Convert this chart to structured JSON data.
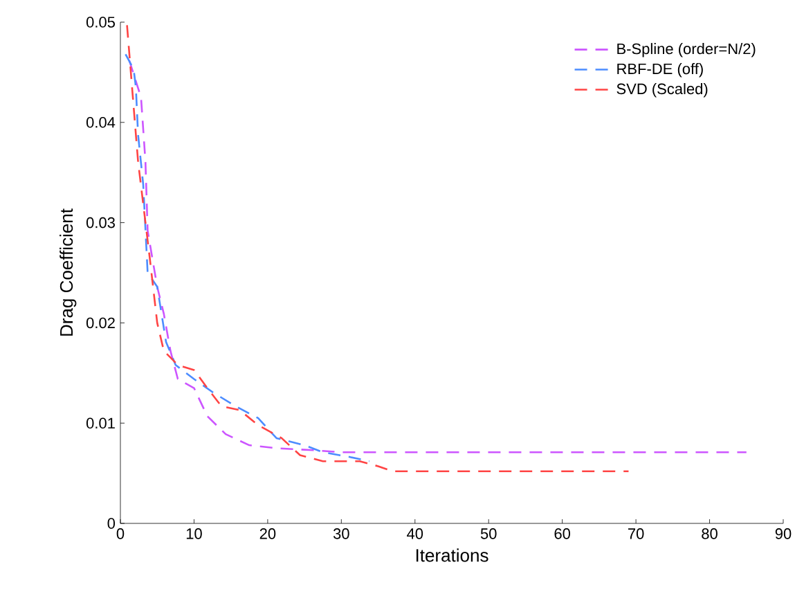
{
  "chart_data": {
    "type": "line",
    "xlabel": "Iterations",
    "ylabel": "Drag Coefficient",
    "xlim": [
      0,
      90
    ],
    "xticks": [
      0,
      10,
      20,
      30,
      40,
      50,
      60,
      70,
      80,
      90
    ],
    "ylim": [
      0,
      0.05
    ],
    "yticks": [
      0,
      0.01,
      0.02,
      0.03,
      0.04,
      0.05
    ],
    "legend": "top right",
    "grid": false,
    "marker": "none",
    "line_style": "dashed",
    "series": [
      {
        "name": "B-Spline (order=N/2)",
        "color": "#cc55ff",
        "x": [
          1.2,
          2.8,
          3.4,
          3.7,
          5,
          5.9,
          6.8,
          7.8,
          10,
          11.8,
          14.3,
          17.5,
          21.2,
          26.2,
          30,
          85
        ],
        "values": [
          0.0462,
          0.0425,
          0.0361,
          0.0292,
          0.0236,
          0.0209,
          0.0172,
          0.0144,
          0.0135,
          0.0107,
          0.0089,
          0.0078,
          0.0075,
          0.0073,
          0.0071,
          0.0071
        ]
      },
      {
        "name": "RBF-DE (off)",
        "color": "#4c8cff",
        "x": [
          0.7,
          1.8,
          2.1,
          2.4,
          3.1,
          3.7,
          5,
          6.2,
          7.5,
          10,
          12.5,
          15.6,
          18.7,
          21.2,
          25,
          27.5,
          31.3,
          33.8
        ],
        "values": [
          0.0468,
          0.0453,
          0.0435,
          0.0388,
          0.0338,
          0.025,
          0.0236,
          0.0181,
          0.0158,
          0.0144,
          0.0131,
          0.0117,
          0.0105,
          0.0085,
          0.0078,
          0.0071,
          0.0066,
          0.0062
        ]
      },
      {
        "name": "SVD (Scaled)",
        "color": "#ff4444",
        "x": [
          0.9,
          2.4,
          4,
          5,
          5.9,
          7.8,
          10,
          11.8,
          13.7,
          16.2,
          18.7,
          21.9,
          24.4,
          27.5,
          32.5,
          35,
          37,
          69
        ],
        "values": [
          0.0497,
          0.0361,
          0.0264,
          0.02,
          0.0172,
          0.0158,
          0.0153,
          0.0135,
          0.0117,
          0.0113,
          0.0098,
          0.0085,
          0.0068,
          0.0062,
          0.0062,
          0.0057,
          0.0052,
          0.0052
        ]
      }
    ]
  }
}
